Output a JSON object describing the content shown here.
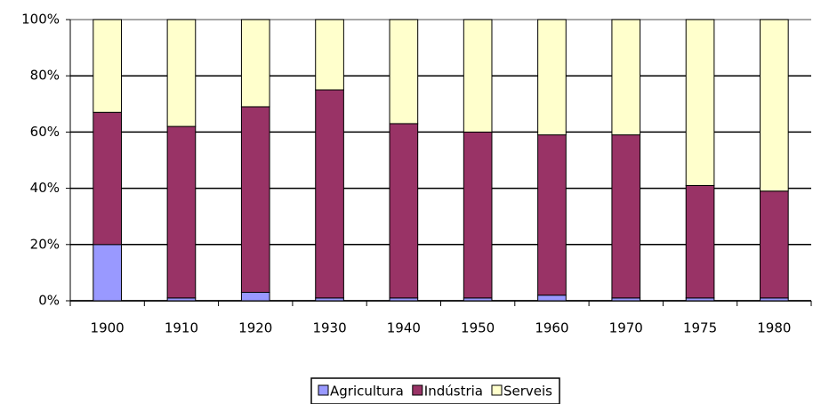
{
  "chart_data": {
    "type": "stacked_bar",
    "categories": [
      "1900",
      "1910",
      "1920",
      "1930",
      "1940",
      "1950",
      "1960",
      "1970",
      "1975",
      "1980"
    ],
    "series": [
      {
        "name": "Agricultura",
        "color": "#9999ff",
        "values": [
          20,
          1,
          3,
          1,
          1,
          1,
          2,
          1,
          1,
          1
        ]
      },
      {
        "name": "Indústria",
        "color": "#993366",
        "values": [
          47,
          61,
          66,
          74,
          62,
          59,
          57,
          58,
          40,
          38
        ]
      },
      {
        "name": "Serveis",
        "color": "#ffffcc",
        "values": [
          33,
          38,
          31,
          25,
          37,
          40,
          41,
          41,
          59,
          61
        ]
      }
    ],
    "ylim": [
      0,
      100
    ],
    "yticks": [
      {
        "value": 0,
        "label": "0%"
      },
      {
        "value": 20,
        "label": "20%"
      },
      {
        "value": 40,
        "label": "40%"
      },
      {
        "value": 60,
        "label": "60%"
      },
      {
        "value": 80,
        "label": "80%"
      },
      {
        "value": 100,
        "label": "100%"
      }
    ],
    "grid": true,
    "legend": "bottom"
  }
}
